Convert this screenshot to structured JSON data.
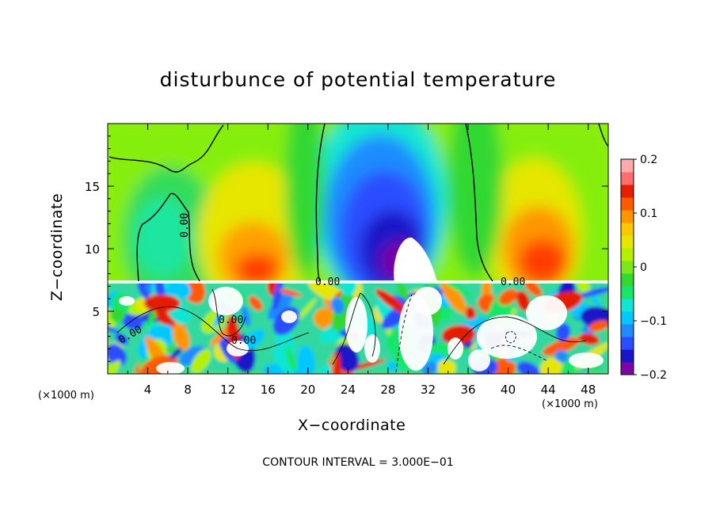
{
  "chart_data": {
    "type": "heatmap",
    "title": "disturbunce of potential temperature",
    "xlabel": "X−coordinate",
    "ylabel": "Z−coordinate",
    "x_unit_left": "(×1000 m)",
    "x_unit_right": "(×1000 m)",
    "footer": "CONTOUR INTERVAL = 3.000E−01",
    "xlim": [
      0,
      50
    ],
    "ylim": [
      0,
      20
    ],
    "x_ticks": [
      "4",
      "8",
      "12",
      "16",
      "20",
      "24",
      "28",
      "32",
      "36",
      "40",
      "44",
      "48"
    ],
    "y_ticks": [
      "5",
      "10",
      "15"
    ],
    "colorbar": {
      "range": [
        -0.2,
        0.2
      ],
      "tick_labels": [
        "0.2",
        "0.1",
        "0",
        "−0.1",
        "−0.2"
      ],
      "colors": [
        "#7a06a6",
        "#1a16c8",
        "#2a4eff",
        "#1e8cff",
        "#00c8ff",
        "#10e6d2",
        "#18e66a",
        "#30d830",
        "#7ce81a",
        "#b4f000",
        "#e6e600",
        "#ffc800",
        "#ff9600",
        "#ff5a00",
        "#e61e00",
        "#ff6e6e",
        "#ffaaaa"
      ]
    },
    "contour_labels": [
      "0.00",
      "0.00",
      "0.00",
      "0.00",
      "0.00",
      "0.00"
    ],
    "grid": false,
    "legend": "colorbar-right"
  }
}
